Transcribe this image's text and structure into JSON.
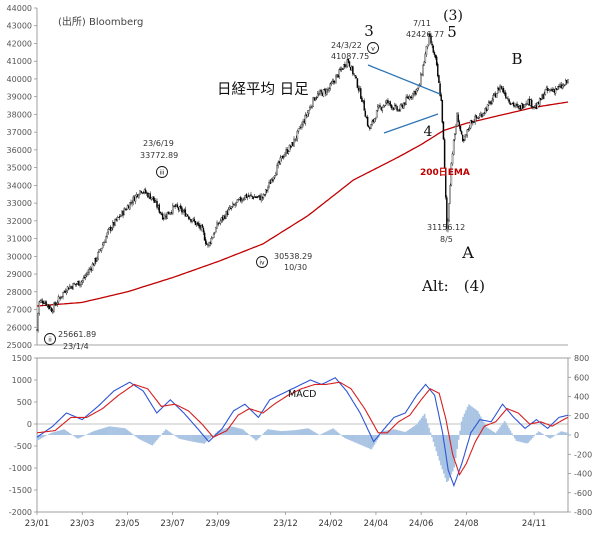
{
  "chart_data": [
    {
      "type": "candlestick",
      "title": "日経平均 日足",
      "source": "(出所) Bloomberg",
      "ylim": [
        25000,
        44000
      ],
      "y_ticks": [
        25000,
        26000,
        27000,
        28000,
        29000,
        30000,
        31000,
        32000,
        33000,
        34000,
        35000,
        36000,
        37000,
        38000,
        39000,
        40000,
        41000,
        42000,
        43000,
        44000
      ],
      "y_tick_labels": [
        "25000",
        "26000",
        "27000",
        "28000",
        "29000",
        "30000",
        "31000",
        "32000",
        "33000",
        "34000",
        "35000",
        "36000",
        "37000",
        "38000",
        "39000",
        "40000",
        "41000",
        "42000",
        "43000",
        "44000"
      ],
      "price_path": [
        {
          "t": 0.0,
          "y": 25850
        },
        {
          "t": 0.08,
          "y": 27400
        },
        {
          "t": 0.3,
          "y": 27500
        },
        {
          "t": 0.65,
          "y": 27000
        },
        {
          "t": 1.3,
          "y": 28200
        },
        {
          "t": 2.0,
          "y": 28600
        },
        {
          "t": 2.6,
          "y": 29800
        },
        {
          "t": 3.2,
          "y": 31500
        },
        {
          "t": 4.0,
          "y": 32800
        },
        {
          "t": 4.6,
          "y": 33772
        },
        {
          "t": 5.1,
          "y": 33300
        },
        {
          "t": 5.6,
          "y": 32200
        },
        {
          "t": 6.1,
          "y": 32800
        },
        {
          "t": 6.6,
          "y": 32400
        },
        {
          "t": 7.3,
          "y": 31500
        },
        {
          "t": 7.55,
          "y": 30538
        },
        {
          "t": 8.0,
          "y": 31800
        },
        {
          "t": 8.5,
          "y": 32600
        },
        {
          "t": 9.2,
          "y": 33400
        },
        {
          "t": 10.0,
          "y": 33300
        },
        {
          "t": 10.4,
          "y": 34400
        },
        {
          "t": 10.9,
          "y": 35700
        },
        {
          "t": 11.3,
          "y": 36300
        },
        {
          "t": 11.8,
          "y": 37600
        },
        {
          "t": 12.3,
          "y": 39000
        },
        {
          "t": 12.9,
          "y": 39400
        },
        {
          "t": 13.75,
          "y": 41087
        },
        {
          "t": 14.1,
          "y": 40000
        },
        {
          "t": 14.4,
          "y": 38800
        },
        {
          "t": 14.7,
          "y": 37100
        },
        {
          "t": 15.1,
          "y": 38300
        },
        {
          "t": 15.5,
          "y": 38700
        },
        {
          "t": 16.0,
          "y": 38200
        },
        {
          "t": 16.4,
          "y": 38900
        },
        {
          "t": 16.9,
          "y": 39500
        },
        {
          "t": 17.35,
          "y": 42426
        },
        {
          "t": 17.65,
          "y": 41000
        },
        {
          "t": 17.9,
          "y": 38600
        },
        {
          "t": 18.0,
          "y": 36200
        },
        {
          "t": 18.15,
          "y": 31156
        },
        {
          "t": 18.35,
          "y": 35500
        },
        {
          "t": 18.6,
          "y": 38000
        },
        {
          "t": 18.85,
          "y": 36300
        },
        {
          "t": 19.2,
          "y": 37600
        },
        {
          "t": 19.6,
          "y": 37900
        },
        {
          "t": 20.1,
          "y": 38700
        },
        {
          "t": 20.5,
          "y": 39600
        },
        {
          "t": 20.9,
          "y": 38800
        },
        {
          "t": 21.3,
          "y": 38300
        },
        {
          "t": 21.7,
          "y": 38800
        },
        {
          "t": 22.1,
          "y": 38400
        },
        {
          "t": 22.5,
          "y": 39300
        },
        {
          "t": 22.9,
          "y": 39400
        },
        {
          "t": 23.3,
          "y": 39600
        },
        {
          "t": 23.5,
          "y": 39900
        }
      ],
      "ema_path": [
        {
          "t": 0.0,
          "y": 27200
        },
        {
          "t": 2.0,
          "y": 27400
        },
        {
          "t": 4.0,
          "y": 28000
        },
        {
          "t": 6.0,
          "y": 28800
        },
        {
          "t": 8.0,
          "y": 29700
        },
        {
          "t": 10.0,
          "y": 30700
        },
        {
          "t": 12.0,
          "y": 32300
        },
        {
          "t": 14.0,
          "y": 34300
        },
        {
          "t": 16.0,
          "y": 35600
        },
        {
          "t": 17.0,
          "y": 36300
        },
        {
          "t": 18.0,
          "y": 37100
        },
        {
          "t": 19.0,
          "y": 37500
        },
        {
          "t": 20.0,
          "y": 37800
        },
        {
          "t": 21.0,
          "y": 38100
        },
        {
          "t": 22.0,
          "y": 38400
        },
        {
          "t": 23.5,
          "y": 38700
        }
      ],
      "ema_label": "200日EMA",
      "annotations": {
        "wave_3": "3",
        "wave_3_paren": "(3)",
        "wave_5": "5",
        "wave_4": "4",
        "wave_A": "A",
        "wave_B": "B",
        "alt": "Alt:　(4)",
        "peak_0322_date": "24/3/22",
        "peak_0322_value": "41087.75",
        "peak_0711_date": "7/11",
        "peak_0711_value": "42426.77",
        "peak_0619_date": "23/6/19",
        "peak_0619_value": "33772.89",
        "low_1030_value": "30538.29",
        "low_1030_date": "10/30",
        "low_0805_value": "31156.12",
        "low_0805_date": "8/5",
        "low_0104_value": "25661.89",
        "low_0104_date": "23/1/4",
        "roman_ii": "ii",
        "roman_iii": "iii",
        "roman_iv": "iv",
        "roman_v": "v"
      }
    },
    {
      "type": "line+bar",
      "title": "MACD",
      "ylim": [
        -2000,
        1500
      ],
      "y2lim": [
        -800,
        800
      ],
      "y_ticks": [
        -2000,
        -1500,
        -1000,
        -500,
        0,
        500,
        1000,
        1500
      ],
      "y_tick_labels": [
        "-2000",
        "-1500",
        "-1000",
        "-500",
        "0",
        "500",
        "1000",
        "1500"
      ],
      "y2_ticks": [
        -800,
        -600,
        -400,
        -200,
        0,
        200,
        400,
        600,
        800
      ],
      "y2_tick_labels": [
        "-800",
        "-600",
        "-400",
        "-200",
        "0",
        "200",
        "400",
        "600",
        "800"
      ],
      "categories": [
        "23/01",
        "23/03",
        "23/05",
        "23/07",
        "23/09",
        "23/12",
        "24/02",
        "24/04",
        "24/06",
        "24/08",
        "24/11"
      ],
      "x_tick_months": [
        0,
        2,
        4,
        6,
        8,
        11,
        13,
        15,
        17,
        19,
        22
      ],
      "macd_path": [
        {
          "t": 0.0,
          "y": -300
        },
        {
          "t": 0.7,
          "y": -50
        },
        {
          "t": 1.3,
          "y": 250
        },
        {
          "t": 2.0,
          "y": 100
        },
        {
          "t": 2.7,
          "y": 400
        },
        {
          "t": 3.4,
          "y": 750
        },
        {
          "t": 4.1,
          "y": 950
        },
        {
          "t": 4.7,
          "y": 750
        },
        {
          "t": 5.3,
          "y": 250
        },
        {
          "t": 5.9,
          "y": 550
        },
        {
          "t": 6.5,
          "y": 250
        },
        {
          "t": 7.1,
          "y": -100
        },
        {
          "t": 7.6,
          "y": -400
        },
        {
          "t": 8.2,
          "y": -100
        },
        {
          "t": 8.7,
          "y": 300
        },
        {
          "t": 9.2,
          "y": 450
        },
        {
          "t": 9.8,
          "y": 150
        },
        {
          "t": 10.3,
          "y": 550
        },
        {
          "t": 10.9,
          "y": 700
        },
        {
          "t": 11.5,
          "y": 850
        },
        {
          "t": 12.1,
          "y": 1000
        },
        {
          "t": 12.6,
          "y": 900
        },
        {
          "t": 13.2,
          "y": 1050
        },
        {
          "t": 13.7,
          "y": 750
        },
        {
          "t": 14.3,
          "y": 250
        },
        {
          "t": 14.9,
          "y": -400
        },
        {
          "t": 15.3,
          "y": -150
        },
        {
          "t": 15.8,
          "y": 150
        },
        {
          "t": 16.3,
          "y": 250
        },
        {
          "t": 16.8,
          "y": 650
        },
        {
          "t": 17.2,
          "y": 900
        },
        {
          "t": 17.6,
          "y": 650
        },
        {
          "t": 17.95,
          "y": -200
        },
        {
          "t": 18.2,
          "y": -1050
        },
        {
          "t": 18.45,
          "y": -1400
        },
        {
          "t": 18.8,
          "y": -900
        },
        {
          "t": 19.2,
          "y": -200
        },
        {
          "t": 19.6,
          "y": 100
        },
        {
          "t": 20.1,
          "y": 50
        },
        {
          "t": 20.6,
          "y": 450
        },
        {
          "t": 21.1,
          "y": 150
        },
        {
          "t": 21.6,
          "y": -100
        },
        {
          "t": 22.1,
          "y": 100
        },
        {
          "t": 22.6,
          "y": -100
        },
        {
          "t": 23.1,
          "y": 150
        },
        {
          "t": 23.5,
          "y": 200
        }
      ],
      "signal_path": [
        {
          "t": 0.0,
          "y": -200
        },
        {
          "t": 0.8,
          "y": -150
        },
        {
          "t": 1.5,
          "y": 150
        },
        {
          "t": 2.2,
          "y": 150
        },
        {
          "t": 2.9,
          "y": 350
        },
        {
          "t": 3.6,
          "y": 650
        },
        {
          "t": 4.3,
          "y": 900
        },
        {
          "t": 4.9,
          "y": 800
        },
        {
          "t": 5.5,
          "y": 400
        },
        {
          "t": 6.1,
          "y": 450
        },
        {
          "t": 6.7,
          "y": 300
        },
        {
          "t": 7.3,
          "y": 0
        },
        {
          "t": 7.8,
          "y": -300
        },
        {
          "t": 8.4,
          "y": -150
        },
        {
          "t": 8.9,
          "y": 200
        },
        {
          "t": 9.4,
          "y": 350
        },
        {
          "t": 10.0,
          "y": 250
        },
        {
          "t": 10.5,
          "y": 450
        },
        {
          "t": 11.1,
          "y": 650
        },
        {
          "t": 11.7,
          "y": 800
        },
        {
          "t": 12.3,
          "y": 900
        },
        {
          "t": 12.8,
          "y": 900
        },
        {
          "t": 13.4,
          "y": 950
        },
        {
          "t": 13.9,
          "y": 800
        },
        {
          "t": 14.5,
          "y": 350
        },
        {
          "t": 15.1,
          "y": -200
        },
        {
          "t": 15.5,
          "y": -200
        },
        {
          "t": 16.0,
          "y": 50
        },
        {
          "t": 16.5,
          "y": 200
        },
        {
          "t": 17.0,
          "y": 550
        },
        {
          "t": 17.4,
          "y": 800
        },
        {
          "t": 17.8,
          "y": 700
        },
        {
          "t": 18.1,
          "y": 100
        },
        {
          "t": 18.4,
          "y": -700
        },
        {
          "t": 18.7,
          "y": -1150
        },
        {
          "t": 19.0,
          "y": -900
        },
        {
          "t": 19.4,
          "y": -400
        },
        {
          "t": 19.8,
          "y": -50
        },
        {
          "t": 20.3,
          "y": 50
        },
        {
          "t": 20.8,
          "y": 350
        },
        {
          "t": 21.3,
          "y": 250
        },
        {
          "t": 21.8,
          "y": 0
        },
        {
          "t": 22.3,
          "y": 50
        },
        {
          "t": 22.8,
          "y": -50
        },
        {
          "t": 23.3,
          "y": 100
        },
        {
          "t": 23.5,
          "y": 150
        }
      ],
      "histogram_path": [
        {
          "t": 0.0,
          "y": -60
        },
        {
          "t": 0.6,
          "y": 20
        },
        {
          "t": 1.2,
          "y": 60
        },
        {
          "t": 1.8,
          "y": -40
        },
        {
          "t": 2.5,
          "y": 40
        },
        {
          "t": 3.2,
          "y": 90
        },
        {
          "t": 3.9,
          "y": 70
        },
        {
          "t": 4.5,
          "y": -40
        },
        {
          "t": 5.1,
          "y": -110
        },
        {
          "t": 5.7,
          "y": 60
        },
        {
          "t": 6.3,
          "y": -40
        },
        {
          "t": 6.9,
          "y": -70
        },
        {
          "t": 7.4,
          "y": -90
        },
        {
          "t": 8.0,
          "y": 40
        },
        {
          "t": 8.6,
          "y": 90
        },
        {
          "t": 9.1,
          "y": 60
        },
        {
          "t": 9.7,
          "y": -60
        },
        {
          "t": 10.2,
          "y": 60
        },
        {
          "t": 10.8,
          "y": 40
        },
        {
          "t": 11.4,
          "y": 50
        },
        {
          "t": 12.0,
          "y": 70
        },
        {
          "t": 12.5,
          "y": 0
        },
        {
          "t": 13.1,
          "y": 70
        },
        {
          "t": 13.6,
          "y": -30
        },
        {
          "t": 14.2,
          "y": -90
        },
        {
          "t": 14.8,
          "y": -150
        },
        {
          "t": 15.3,
          "y": 40
        },
        {
          "t": 15.8,
          "y": 60
        },
        {
          "t": 16.3,
          "y": 30
        },
        {
          "t": 16.8,
          "y": 110
        },
        {
          "t": 17.15,
          "y": 220
        },
        {
          "t": 17.5,
          "y": -40
        },
        {
          "t": 17.85,
          "y": -300
        },
        {
          "t": 18.15,
          "y": -500
        },
        {
          "t": 18.45,
          "y": -350
        },
        {
          "t": 18.8,
          "y": 160
        },
        {
          "t": 19.1,
          "y": 320
        },
        {
          "t": 19.5,
          "y": 250
        },
        {
          "t": 19.9,
          "y": 80
        },
        {
          "t": 20.3,
          "y": 20
        },
        {
          "t": 20.7,
          "y": 150
        },
        {
          "t": 21.2,
          "y": -60
        },
        {
          "t": 21.7,
          "y": -90
        },
        {
          "t": 22.2,
          "y": 40
        },
        {
          "t": 22.7,
          "y": -40
        },
        {
          "t": 23.2,
          "y": 40
        },
        {
          "t": 23.5,
          "y": 20
        }
      ],
      "colors": {
        "macd": "#2f55d4",
        "signal": "#d62020",
        "histogram": "#a9c4e3"
      }
    }
  ],
  "colors": {
    "candle": "#000000",
    "ema": "#c00000",
    "ema_label": "#c00000",
    "triangle": "#2e75b6",
    "axis_text": "#555555",
    "grid": "#d9d9d9"
  }
}
